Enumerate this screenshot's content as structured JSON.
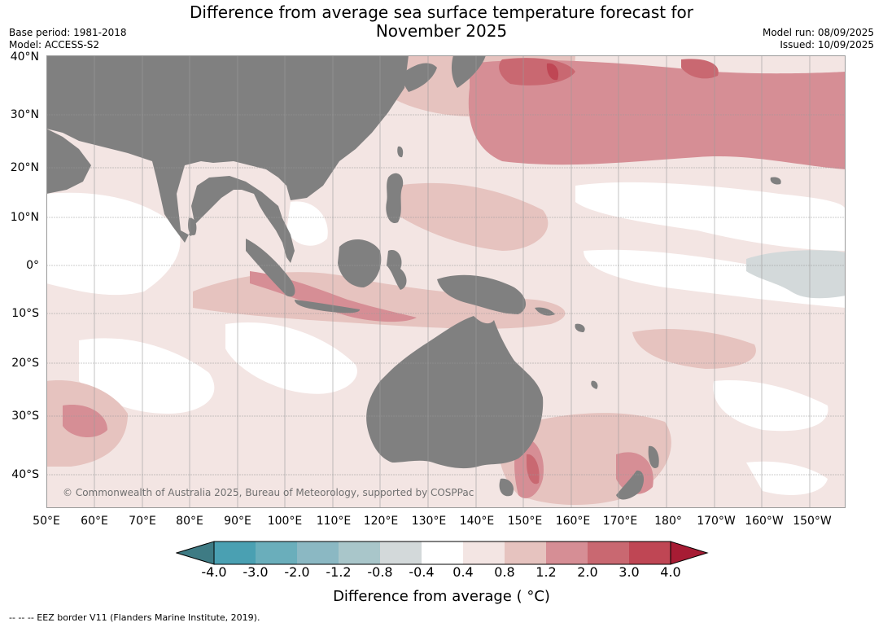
{
  "title_line1": "Difference from average sea surface temperature forecast for",
  "title_line2": "November 2025",
  "base_period": "Base period: 1981-2018",
  "model": "Model: ACCESS-S2",
  "model_run": "Model run: 08/09/2025",
  "issued": "Issued: 10/09/2025",
  "lat_labels": [
    "40°N",
    "30°N",
    "20°N",
    "10°N",
    "0°",
    "10°S",
    "20°S",
    "30°S",
    "40°S"
  ],
  "lon_labels": [
    "50°E",
    "60°E",
    "70°E",
    "80°E",
    "90°E",
    "100°E",
    "110°E",
    "120°E",
    "130°E",
    "140°E",
    "150°E",
    "160°E",
    "170°E",
    "180°",
    "170°W",
    "160°W",
    "150°W"
  ],
  "copyright": "© Commonwealth of Australia 2025, Bureau of Meteorology, supported by COSPPac",
  "colorbar": {
    "ticks": [
      "-4.0",
      "-3.0",
      "-2.0",
      "-1.2",
      "-0.8",
      "-0.4",
      "0.4",
      "0.8",
      "1.2",
      "2.0",
      "3.0",
      "4.0"
    ],
    "colors": [
      "#3e7b84",
      "#4aa0b2",
      "#6aaebb",
      "#8bb8c3",
      "#a9c6ca",
      "#d3d9da",
      "#ffffff",
      "#f3e5e3",
      "#e6c3bf",
      "#d68e95",
      "#c96871",
      "#bf4654",
      "#a71c34"
    ],
    "title": "Difference from average ( °C)"
  },
  "footer": "-- -- -- EEZ border V11 (Flanders Marine Institute, 2019).",
  "colors": {
    "land": "#808080",
    "ocean_neutral": "#ffffff"
  }
}
